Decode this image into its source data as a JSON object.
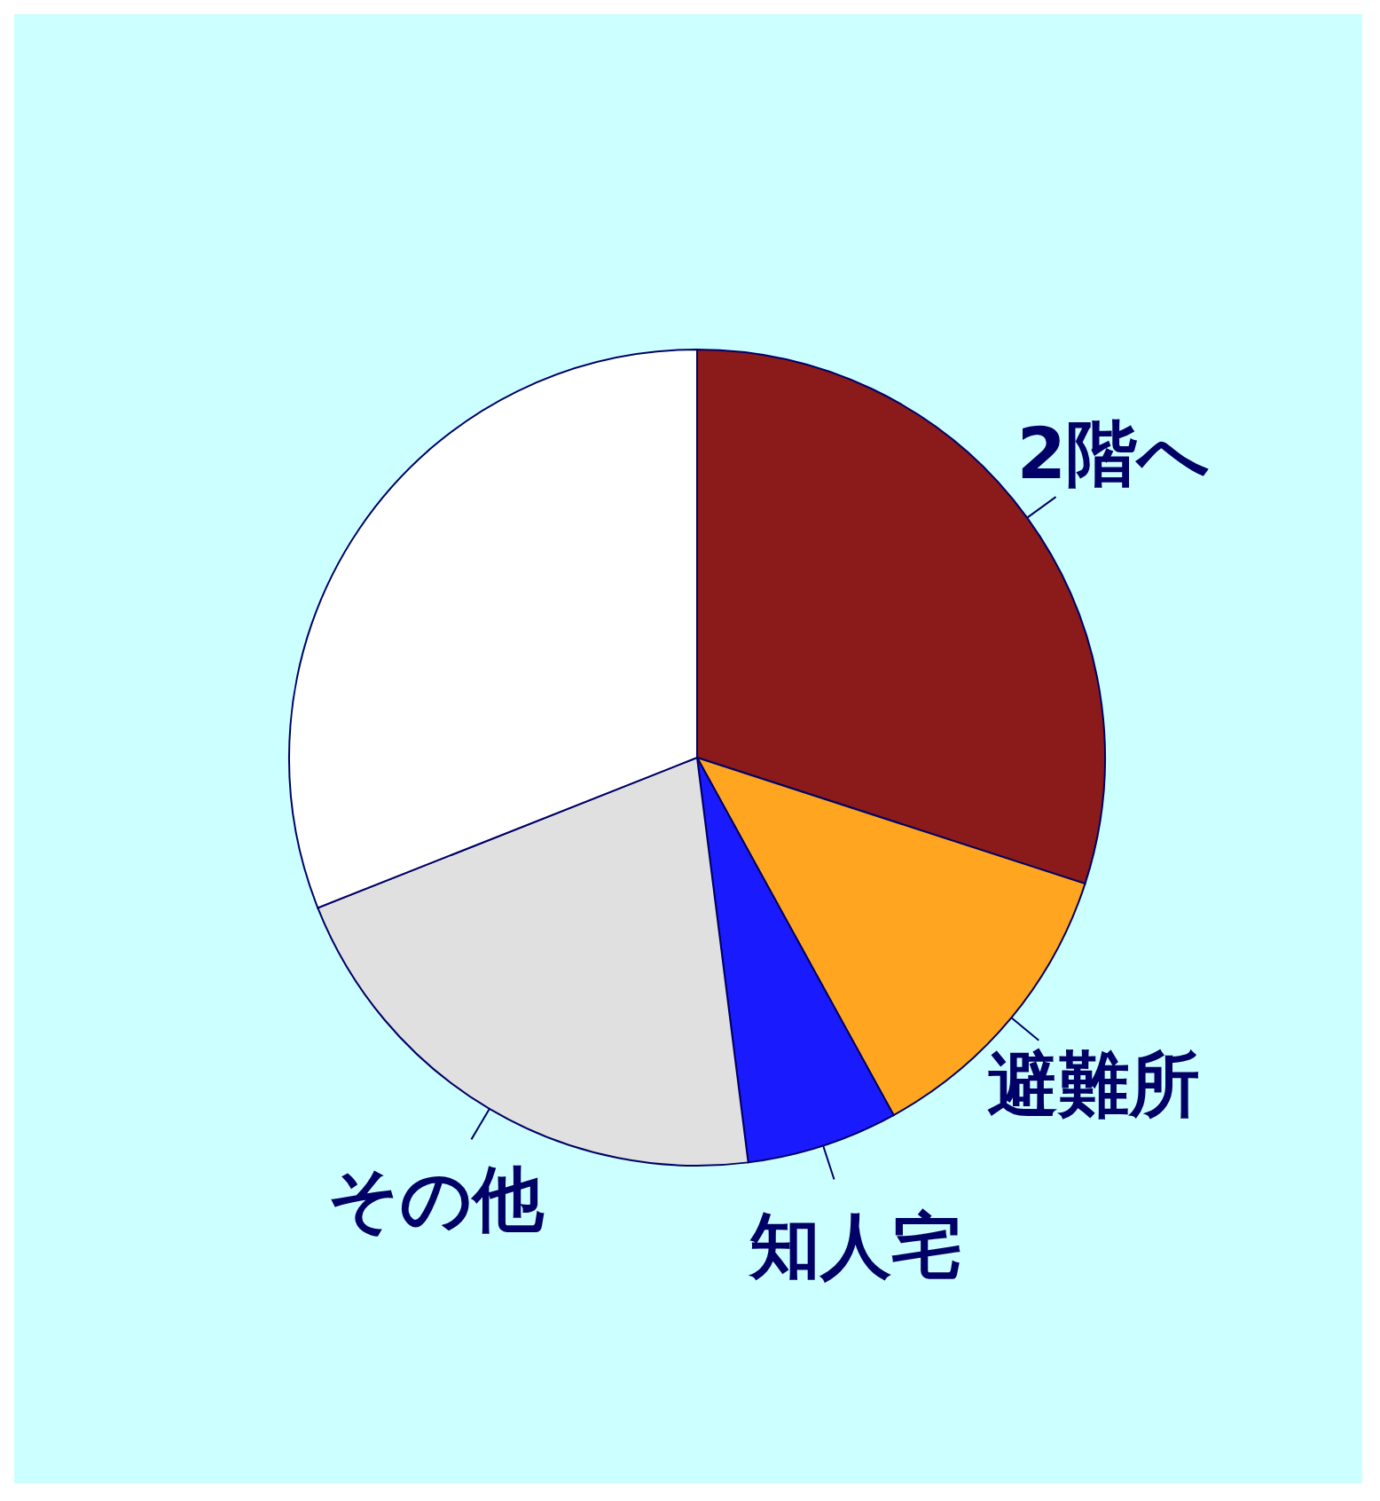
{
  "chart_data": {
    "type": "pie",
    "categories": [
      "2階へ",
      "避難所",
      "知人宅",
      "その他",
      null
    ],
    "values": [
      30,
      12,
      6,
      21,
      31
    ],
    "colors": [
      "#8b1a1a",
      "#ffa520",
      "#1a1aff",
      "#e0e0e0",
      "#ffffff"
    ]
  }
}
